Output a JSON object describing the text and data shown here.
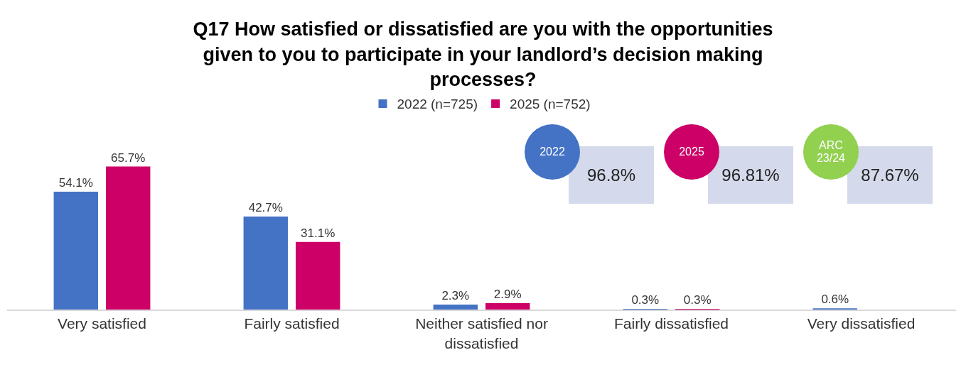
{
  "chart_data": {
    "type": "bar",
    "title": "Q17 How satisfied or dissatisfied are you with the opportunities given to you to participate in your landlord’s decision making processes?",
    "categories": [
      "Very satisfied",
      "Fairly satisfied",
      "Neither satisfied nor dissatisfied",
      "Fairly dissatisfied",
      "Very dissatisfied"
    ],
    "series": [
      {
        "name": "2022 (n=725)",
        "color": "#4472c4",
        "values": [
          54.1,
          42.7,
          2.3,
          0.3,
          0.6
        ],
        "value_labels": [
          "54.1%",
          "42.7%",
          "2.3%",
          "0.3%",
          "0.6%"
        ]
      },
      {
        "name": "2025 (n=752)",
        "color": "#cc0066",
        "values": [
          65.7,
          31.1,
          2.9,
          0.3,
          null
        ],
        "value_labels": [
          "65.7%",
          "31.1%",
          "2.9%",
          "0.3%",
          null
        ]
      }
    ],
    "annotations": [
      "2022",
      "96.8%",
      "2025",
      "96.81%",
      "ARC 23/24",
      "87.67%"
    ],
    "legend": "top",
    "grid": false
  }
}
